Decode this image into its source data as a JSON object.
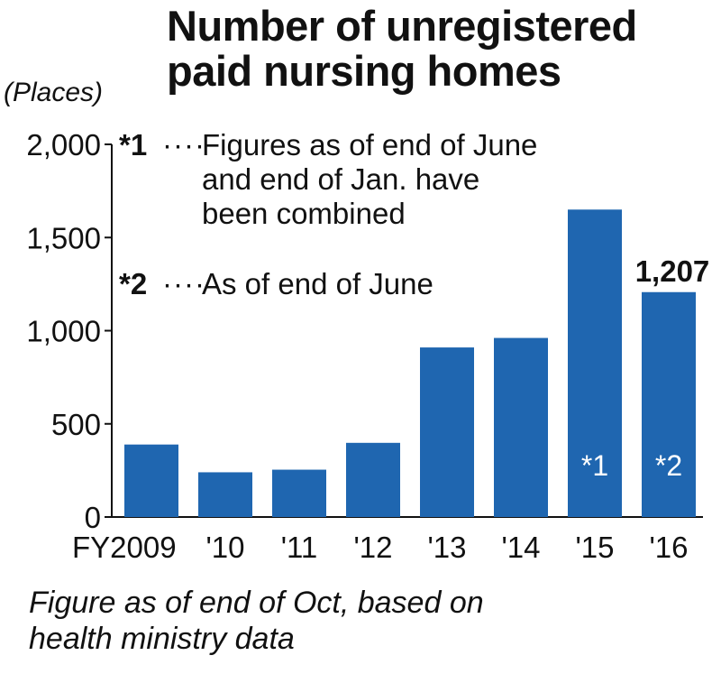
{
  "title": {
    "line1": "Number of unregistered",
    "line2": "paid nursing homes"
  },
  "unit_label": "(Places)",
  "notes": [
    {
      "mark": "*1",
      "dots": "····",
      "lines": [
        "Figures as of end of June",
        "and end of Jan. have",
        "been combined"
      ]
    },
    {
      "mark": "*2",
      "dots": "····",
      "lines": [
        "As of end of June"
      ]
    }
  ],
  "source": {
    "line1": "Figure as of end of Oct, based on",
    "line2": "health ministry data"
  },
  "colors": {
    "bar": "#1f66b0",
    "axis": "#111111",
    "bar_text": "#ffffff"
  },
  "chart_data": {
    "type": "bar",
    "categories": [
      "FY2009",
      "'10",
      "'11",
      "'12",
      "'13",
      "'14",
      "'15",
      "'16"
    ],
    "values": [
      389,
      240,
      254,
      398,
      910,
      961,
      1650,
      1207
    ],
    "bar_marks": [
      "",
      "",
      "",
      "",
      "",
      "",
      "*1",
      "*2"
    ],
    "data_labels": [
      "",
      "",
      "",
      "",
      "",
      "",
      "",
      "1,207"
    ],
    "yticks": [
      0,
      500,
      1000,
      1500,
      2000
    ],
    "ytick_labels": [
      "0",
      "500",
      "1,000",
      "1,500",
      "2,000"
    ],
    "ylim": [
      0,
      2000
    ],
    "ylabel": "(Places)",
    "grid": false
  }
}
